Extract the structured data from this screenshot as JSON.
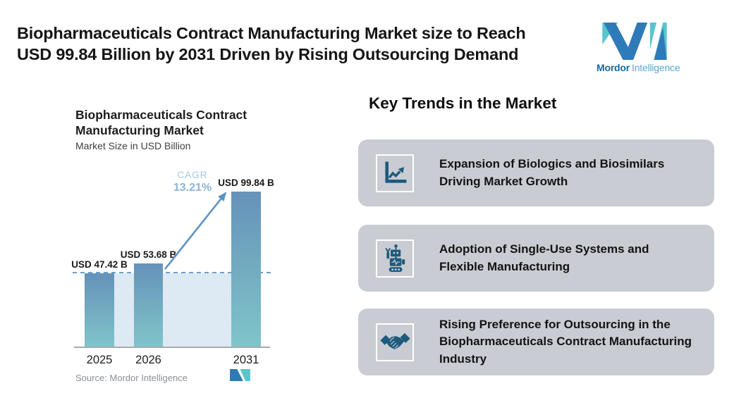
{
  "header": {
    "title_line1": "Biopharmaceuticals Contract Manufacturing Market size to Reach",
    "title_line2": "USD 99.84 Billion by 2031 Driven by Rising Outsourcing Demand",
    "brand": {
      "name_bold": "Mordor",
      "name_light": "Intelligence"
    }
  },
  "chart": {
    "title_line1": "Biopharmaceuticals Contract",
    "title_line2": "Manufacturing Market",
    "subtitle": "Market Size in USD Billion",
    "cagr_label": "CAGR",
    "cagr_value": "13.21%",
    "source": "Source: Mordor Intelligence"
  },
  "chart_data": {
    "type": "bar",
    "title": "Biopharmaceuticals Contract Manufacturing Market",
    "subtitle": "Market Size in USD Billion",
    "unit": "USD Billion",
    "categories": [
      "2025",
      "2026",
      "2031"
    ],
    "values": [
      47.42,
      53.68,
      99.84
    ],
    "value_labels": [
      "USD 47.42 B",
      "USD 53.68 B",
      "USD 99.84 B"
    ],
    "cagr_percent": 13.21,
    "baseline_dashed_at": 47.42,
    "legend": "none",
    "grid": "off",
    "source": "Mordor Intelligence",
    "colors": {
      "bar_top": "#6592b9",
      "bar_bottom": "#80c4ca",
      "dashed_line": "#6aa0d0",
      "shade": "#dde9f3",
      "cagr_text": "#8db5d5",
      "arrow": "#5d93c3"
    }
  },
  "trends": {
    "heading": "Key Trends in the Market",
    "cards": [
      {
        "icon": "growth-chart-icon",
        "text": "Expansion of Biologics and Biosimilars Driving Market Growth"
      },
      {
        "icon": "robot-icon",
        "text": "Adoption of Single-Use Systems and Flexible Manufacturing"
      },
      {
        "icon": "handshake-icon",
        "text": "Rising Preference for Outsourcing in the Biopharmaceuticals Contract Manufacturing Industry"
      }
    ]
  }
}
